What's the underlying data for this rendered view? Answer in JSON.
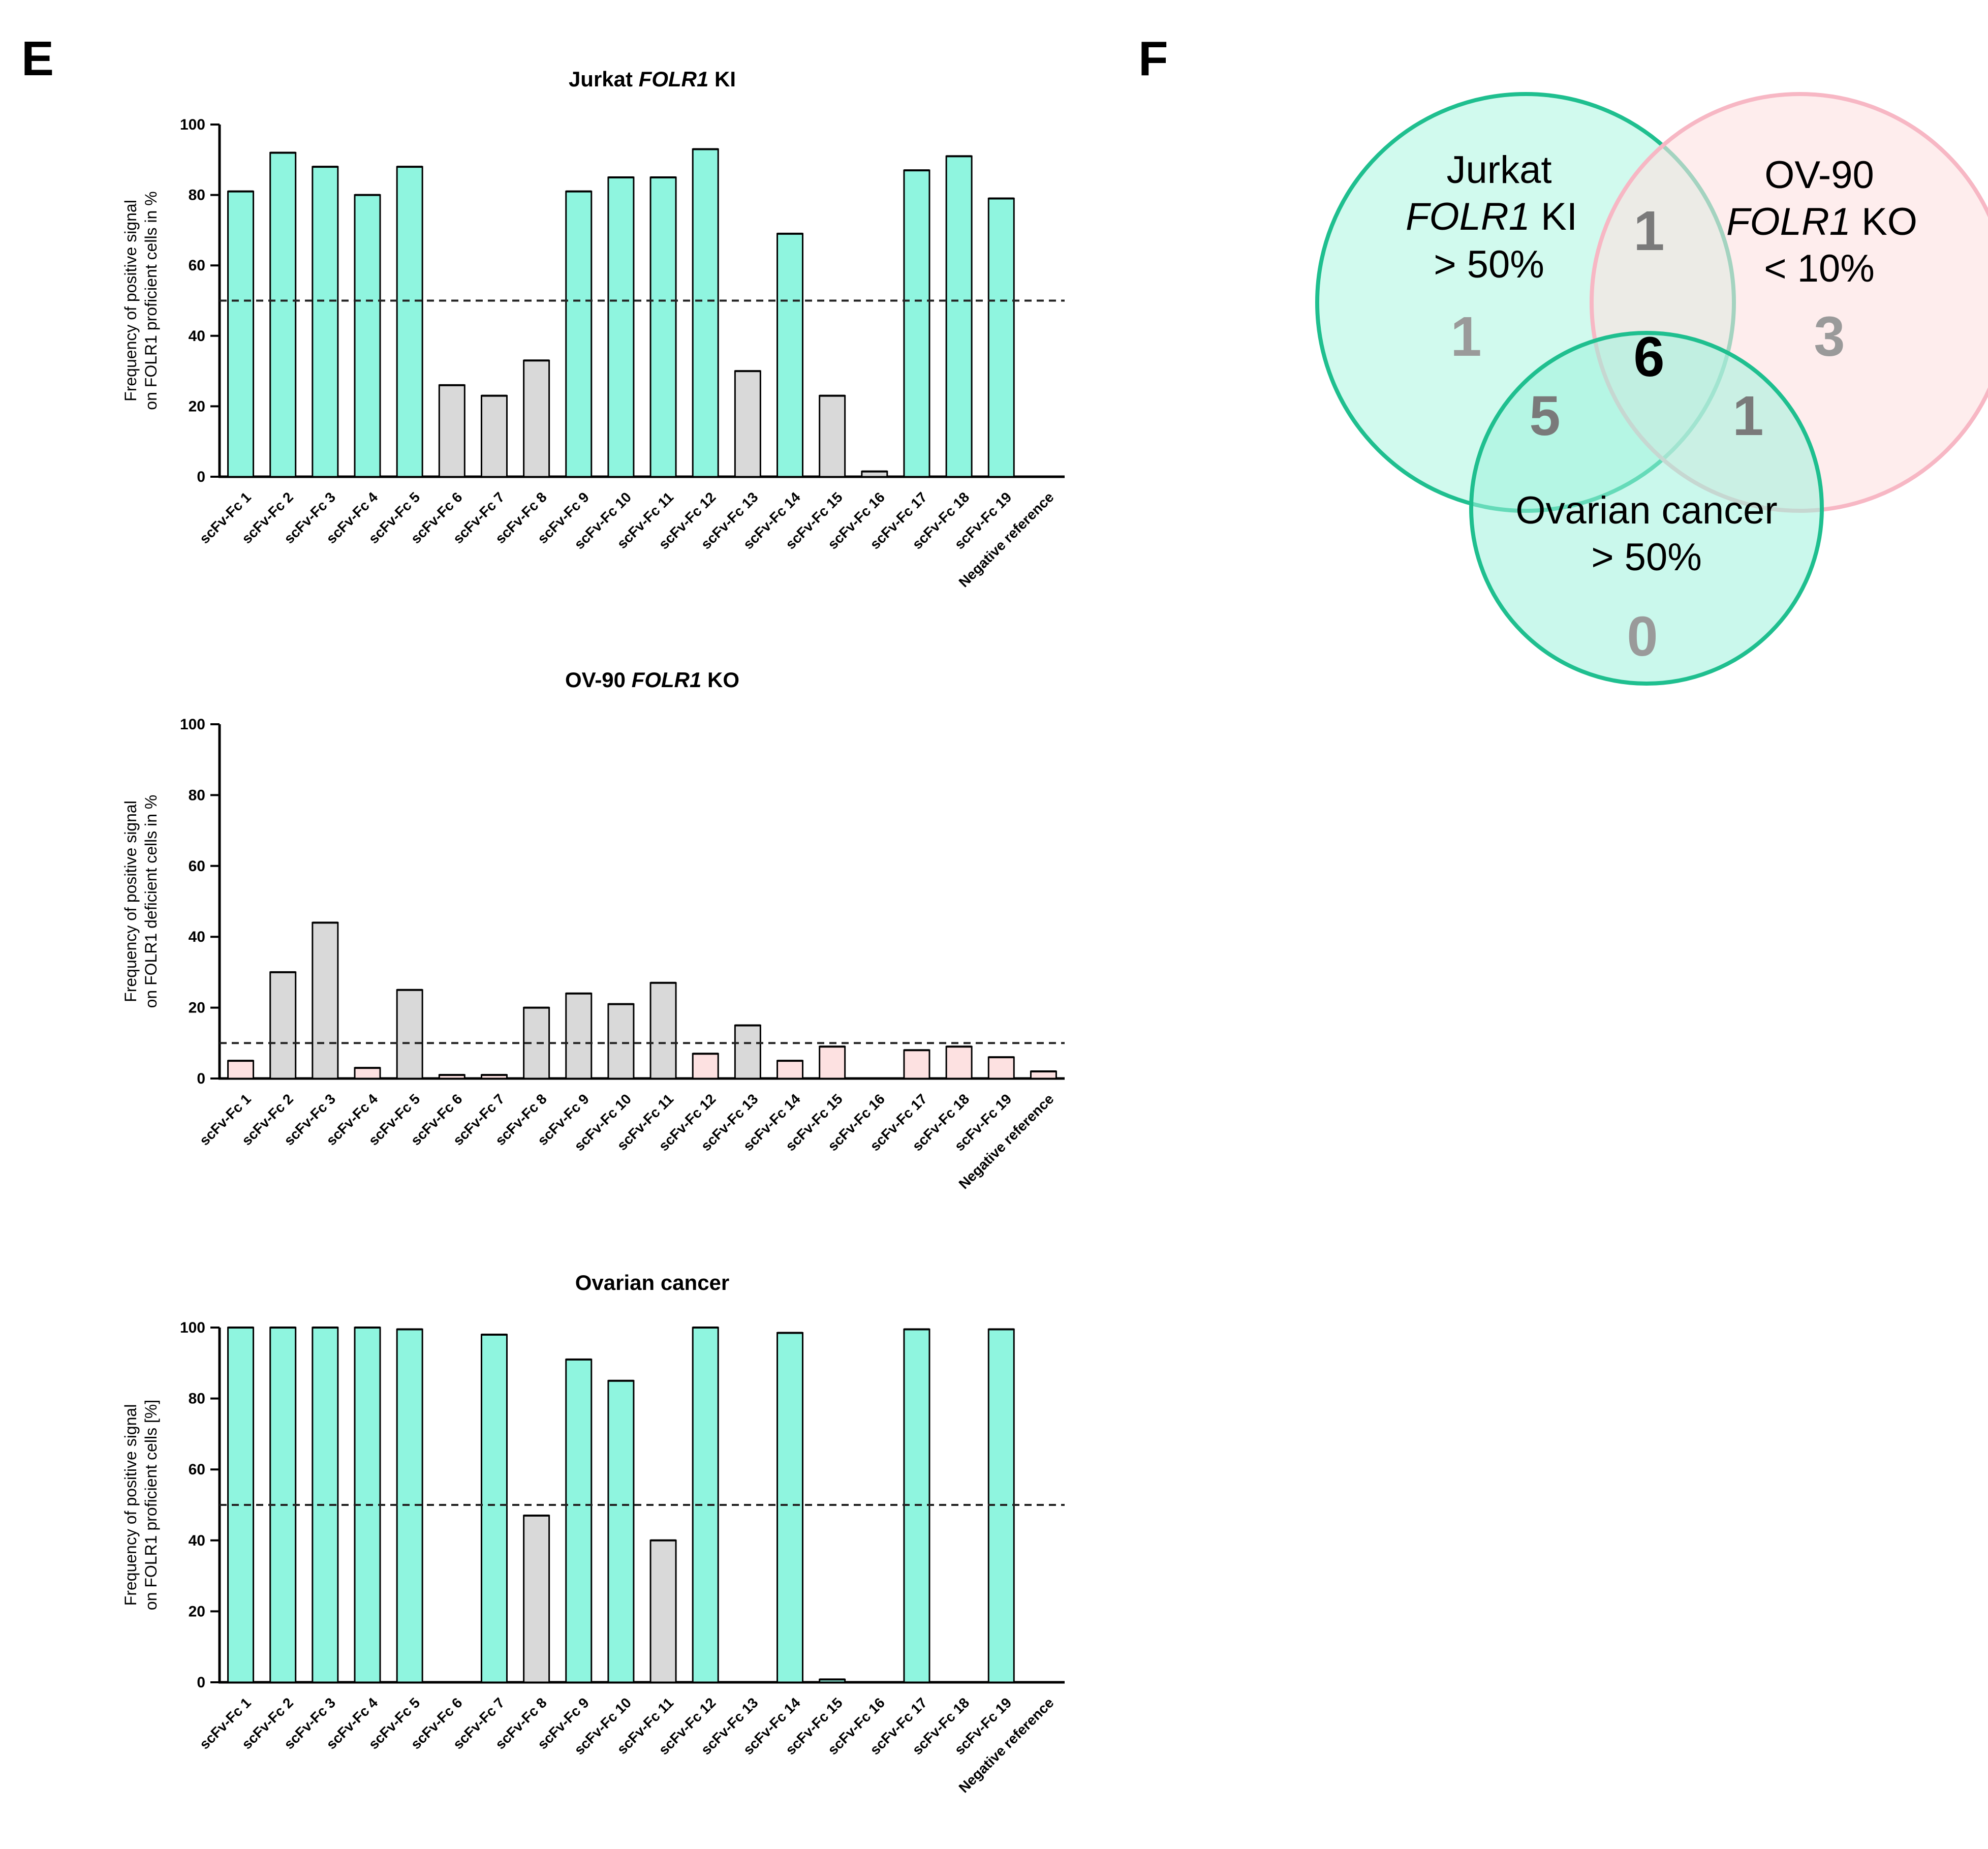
{
  "panels": {
    "left_letter": "E",
    "right_letter": "F"
  },
  "colors": {
    "teal": "#8ff5df",
    "gray": "#d9d9d9",
    "pink": "#fde1e1",
    "teal_stroke": "#1fbf8f",
    "pink_stroke": "#f7b7c4"
  },
  "chart_data": [
    {
      "type": "bar",
      "title_parts": [
        "Jurkat ",
        "FOLR1",
        " KI"
      ],
      "ylabel_lines": [
        "Frequency of positive signal",
        "on FOLR1 proficient cells in %"
      ],
      "yticks": [
        0,
        20,
        40,
        60,
        80,
        100
      ],
      "ylim": [
        0,
        100
      ],
      "threshold": 50,
      "categories": [
        "scFv-Fc 1",
        "scFv-Fc 2",
        "scFv-Fc 3",
        "scFv-Fc 4",
        "scFv-Fc 5",
        "scFv-Fc 6",
        "scFv-Fc 7",
        "scFv-Fc 8",
        "scFv-Fc 9",
        "scFv-Fc 10",
        "scFv-Fc 11",
        "scFv-Fc 12",
        "scFv-Fc 13",
        "scFv-Fc 14",
        "scFv-Fc 15",
        "scFv-Fc 16",
        "scFv-Fc 17",
        "scFv-Fc 18",
        "scFv-Fc 19",
        "Negative reference"
      ],
      "values": [
        81,
        92,
        88,
        80,
        88,
        26,
        23,
        33,
        81,
        85,
        85,
        93,
        30,
        69,
        23,
        1.5,
        87,
        91,
        79,
        0
      ],
      "bar_colors": [
        "teal",
        "teal",
        "teal",
        "teal",
        "teal",
        "gray",
        "gray",
        "gray",
        "teal",
        "teal",
        "teal",
        "teal",
        "gray",
        "teal",
        "gray",
        "gray",
        "teal",
        "teal",
        "teal",
        "teal"
      ]
    },
    {
      "type": "bar",
      "title_parts": [
        "OV-90 ",
        "FOLR1",
        " KO"
      ],
      "ylabel_lines": [
        "Frequency of positive signal",
        "on FOLR1 deficient cells in %"
      ],
      "yticks": [
        0,
        20,
        40,
        60,
        80,
        100
      ],
      "ylim": [
        0,
        100
      ],
      "threshold": 10,
      "categories": [
        "scFv-Fc 1",
        "scFv-Fc 2",
        "scFv-Fc 3",
        "scFv-Fc 4",
        "scFv-Fc 5",
        "scFv-Fc 6",
        "scFv-Fc 7",
        "scFv-Fc 8",
        "scFv-Fc 9",
        "scFv-Fc 10",
        "scFv-Fc 11",
        "scFv-Fc 12",
        "scFv-Fc 13",
        "scFv-Fc 14",
        "scFv-Fc 15",
        "scFv-Fc 16",
        "scFv-Fc 17",
        "scFv-Fc 18",
        "scFv-Fc 19",
        "Negative reference"
      ],
      "values": [
        5,
        30,
        44,
        3,
        25,
        1,
        1,
        20,
        24,
        21,
        27,
        7,
        15,
        5,
        9,
        0,
        8,
        9,
        6,
        2
      ],
      "bar_colors": [
        "pink",
        "gray",
        "gray",
        "pink",
        "gray",
        "pink",
        "pink",
        "gray",
        "gray",
        "gray",
        "gray",
        "pink",
        "gray",
        "pink",
        "pink",
        "pink",
        "pink",
        "pink",
        "pink",
        "pink"
      ]
    },
    {
      "type": "bar",
      "title_parts": [
        "Ovarian cancer",
        "",
        ""
      ],
      "ylabel_lines": [
        "Frequency of positive signal",
        "on FOLR1 proficient cells [%]"
      ],
      "yticks": [
        0,
        20,
        40,
        60,
        80,
        100
      ],
      "ylim": [
        0,
        100
      ],
      "threshold": 50,
      "categories": [
        "scFv-Fc 1",
        "scFv-Fc 2",
        "scFv-Fc 3",
        "scFv-Fc 4",
        "scFv-Fc 5",
        "scFv-Fc 6",
        "scFv-Fc 7",
        "scFv-Fc 8",
        "scFv-Fc 9",
        "scFv-Fc 10",
        "scFv-Fc 11",
        "scFv-Fc 12",
        "scFv-Fc 13",
        "scFv-Fc 14",
        "scFv-Fc 15",
        "scFv-Fc 16",
        "scFv-Fc 17",
        "scFv-Fc 18",
        "scFv-Fc 19",
        "Negative reference"
      ],
      "values": [
        100,
        100,
        100,
        100,
        99.5,
        0,
        98,
        47,
        91,
        85,
        40,
        100,
        0,
        98.5,
        0.8,
        0,
        99.5,
        0,
        99.5,
        0
      ],
      "bar_colors": [
        "teal",
        "teal",
        "teal",
        "teal",
        "teal",
        "teal",
        "teal",
        "gray",
        "teal",
        "teal",
        "gray",
        "teal",
        "teal",
        "teal",
        "teal",
        "teal",
        "teal",
        "teal",
        "teal",
        "teal"
      ]
    }
  ],
  "venn": {
    "sets": [
      {
        "lines": [
          [
            "Jurkat",
            ""
          ],
          [
            "",
            "FOLR1"
          ],
          [
            "> 50%",
            ""
          ]
        ],
        "line2_suffix": " KI",
        "only_count": "1"
      },
      {
        "lines": [
          [
            "OV-90",
            ""
          ],
          [
            "",
            "FOLR1"
          ],
          [
            "< 10%",
            ""
          ]
        ],
        "line2_suffix": " KO",
        "only_count": "3"
      },
      {
        "lines": [
          [
            "Ovarian cancer",
            ""
          ],
          [
            "> 50%",
            ""
          ]
        ],
        "only_count": "0"
      }
    ],
    "jurkat_ov90": "1",
    "jurkat_ovarian": "5",
    "ov90_ovarian": "1",
    "all_three": "6"
  }
}
